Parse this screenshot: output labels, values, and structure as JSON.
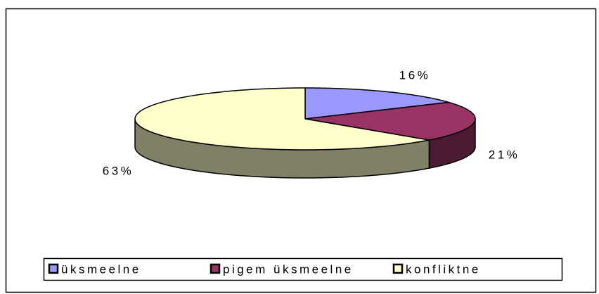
{
  "chart_data": {
    "type": "pie",
    "categories": [
      "üksmeelne",
      "pigem üksmeelne",
      "konfliktne"
    ],
    "values": [
      16,
      21,
      63
    ],
    "value_labels": [
      "16%",
      "21%",
      "63%"
    ],
    "colors": [
      "#9999ff",
      "#993366",
      "#ffffcc"
    ],
    "legend": "bottom"
  }
}
